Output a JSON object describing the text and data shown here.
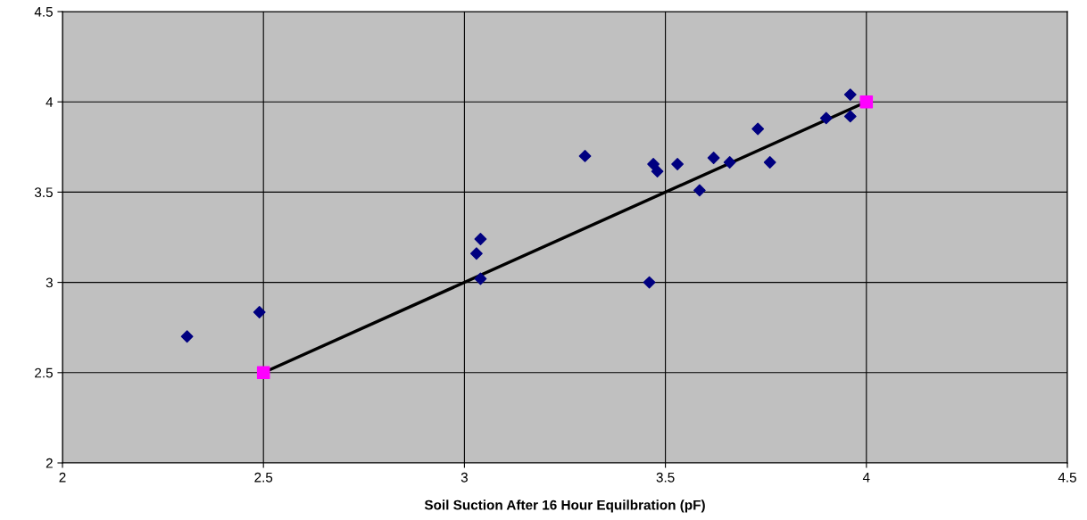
{
  "chart_data": {
    "type": "scatter",
    "xlabel": "Soil Suction After 16 Hour Equilbration (pF)",
    "xlim": [
      2,
      4.5
    ],
    "xticks": [
      2,
      2.5,
      3,
      3.5,
      4,
      4.5
    ],
    "ylim": [
      2,
      4.5
    ],
    "yticks": [
      2,
      2.5,
      3,
      3.5,
      4,
      4.5
    ],
    "grid": true,
    "series": [
      {
        "marker": "diamond",
        "color": "#000080",
        "x": [
          2.31,
          2.49,
          3.03,
          3.04,
          3.04,
          3.3,
          3.46,
          3.47,
          3.48,
          3.53,
          3.585,
          3.62,
          3.66,
          3.73,
          3.76,
          3.9,
          3.96,
          3.96
        ],
        "values": [
          2.7,
          2.835,
          3.16,
          3.24,
          3.02,
          3.7,
          3.0,
          3.655,
          3.615,
          3.655,
          3.51,
          3.69,
          3.665,
          3.85,
          3.665,
          3.91,
          4.04,
          3.92
        ]
      },
      {
        "type": "line",
        "color": "#000000",
        "x": [
          2.5,
          4
        ],
        "values": [
          2.5,
          4
        ]
      },
      {
        "marker": "square",
        "color": "#ff00ff",
        "x": [
          2.5,
          4
        ],
        "values": [
          2.5,
          4
        ]
      }
    ]
  }
}
